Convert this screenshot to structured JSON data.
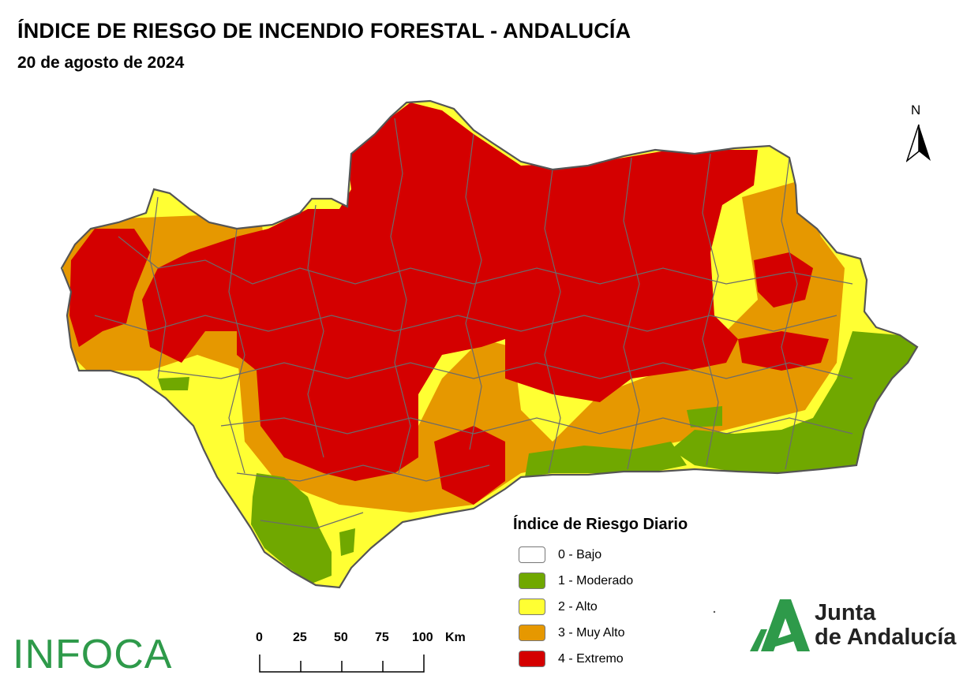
{
  "title": "ÍNDICE DE RIESGO DE INCENDIO FORESTAL - ANDALUCÍA",
  "date": "20 de agosto de 2024",
  "north_label": "N",
  "legend": {
    "title": "Índice de Riesgo Diario",
    "items": [
      {
        "label": "0 - Bajo",
        "color": "#ffffff"
      },
      {
        "label": "1 - Moderado",
        "color": "#70a800"
      },
      {
        "label": "2 - Alto",
        "color": "#ffff33"
      },
      {
        "label": "3 - Muy Alto",
        "color": "#e69800"
      },
      {
        "label": "4 - Extremo",
        "color": "#d40000"
      }
    ]
  },
  "scale": {
    "ticks": [
      "0",
      "25",
      "50",
      "75",
      "100"
    ],
    "unit": "Km"
  },
  "logos": {
    "infoca": "INFOCA",
    "junta_line1": "Junta",
    "junta_line2": "de Andalucía"
  },
  "colors": {
    "bajo": "#ffffff",
    "moderado": "#70a800",
    "alto": "#ffff33",
    "muy_alto": "#e69800",
    "extremo": "#d40000",
    "boundary": "#666666",
    "brand_green": "#2e9a4a"
  }
}
